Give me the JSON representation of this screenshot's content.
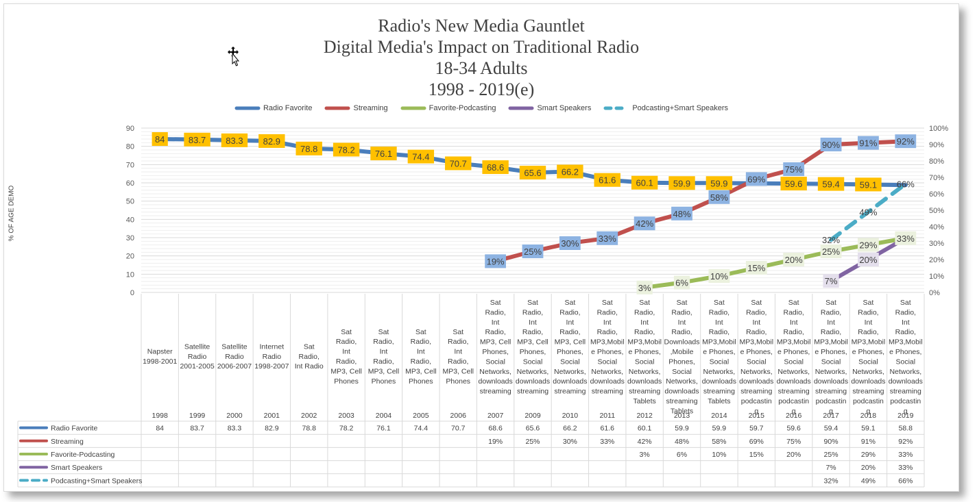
{
  "chart_data": {
    "type": "line",
    "title_lines": [
      "Radio's New Media Gauntlet",
      "Digital Media's Impact on Traditional Radio",
      "18-34 Adults",
      "1998 - 2019(e)"
    ],
    "ylabel": "% OF AGE DEMO",
    "left_axis": {
      "ylim": [
        0,
        90
      ],
      "ticks": [
        "0",
        "10",
        "20",
        "30",
        "40",
        "50",
        "60",
        "70",
        "80",
        "90"
      ]
    },
    "right_axis": {
      "ylim": [
        0,
        100
      ],
      "ticks": [
        "0%",
        "10%",
        "20%",
        "30%",
        "40%",
        "50%",
        "60%",
        "70%",
        "80%",
        "90%",
        "100%"
      ]
    },
    "legend_position": "top",
    "years": [
      "1998",
      "1999",
      "2000",
      "2001",
      "2002",
      "2003",
      "2004",
      "2005",
      "2006",
      "2007",
      "2009",
      "2010",
      "2011",
      "2012",
      "2013",
      "2014",
      "2015",
      "2016",
      "2017",
      "2018",
      "2019"
    ],
    "category_labels": [
      "Napster 1998-2001",
      "Satellite Radio 2001-2005",
      "Satellite Radio 2006-2007",
      "Internet Radio 1998-2007",
      "Sat Radio, Int Radio",
      "Sat Radio, Int Radio, MP3, Cell Phones",
      "Sat Radio, Int Radio, MP3, Cell Phones",
      "Sat Radio, Int Radio, MP3, Cell Phones",
      "Sat Radio, Int Radio, MP3, Cell Phones",
      "Sat Radio, Int Radio, MP3, Cell Phones, Social Networks, downloads streaming",
      "Sat Radio, Int Radio, MP3, Cell Phones, Social Networks, downloads streaming",
      "Sat Radio, Int Radio, MP3, Cell Phones, Social Networks, downloads streaming",
      "Sat Radio, Int Radio, MP3,Mobile Phones, Social Networks, downloads streaming",
      "Sat Radio, Int Radio, MP3,Mobile Phones, Social Networks, downloads streaming Tablets",
      "Sat Radio, Int Radio, Downloads,Mobile Phones, Social Networks, downloads streaming Tablets",
      "Sat Radio, Int Radio, MP3,Mobile Phones, Social Networks, downloads streaming Tablets",
      "Sat Radio, Int Radio, MP3,Mobile Phones, Social Networks, downloads streaming podcasting",
      "Sat Radio, Int Radio, MP3,Mobile Phones, Social Networks, downloads streaming podcasting",
      "Sat Radio, Int Radio, MP3,Mobile Phones, Social Networks, downloads streaming podcasting",
      "Sat Radio, Int Radio, MP3,Mobile Phones, Social Networks, downloads streaming podcasting",
      "Sat Radio, Int Radio, MP3,Mobile Phones, Social Networks, downloads streaming podcasting"
    ],
    "series": [
      {
        "name": "Radio Favorite",
        "axis": "left",
        "color": "#4a7ebb",
        "dash": false,
        "label_bg": "#ffc000",
        "values": [
          84,
          83.7,
          83.3,
          82.9,
          78.8,
          78.2,
          76.1,
          74.4,
          70.7,
          68.6,
          65.6,
          66.2,
          61.6,
          60.1,
          59.9,
          59.9,
          59.7,
          59.6,
          59.4,
          59.1,
          58.8
        ],
        "labels": [
          "84",
          "83.7",
          "83.3",
          "82.9",
          "78.8",
          "78.2",
          "76.1",
          "74.4",
          "70.7",
          "68.6",
          "65.6",
          "66.2",
          "61.6",
          "60.1",
          "59.9",
          "59.9",
          "59.7",
          "59.6",
          "59.4",
          "59.1",
          "58.8"
        ],
        "shown_labels": [
          "84",
          "83.7",
          "83.3",
          "82.9",
          "78.8",
          "78.2",
          "76.1",
          "74.4",
          "70.7",
          "68.6",
          "65.6",
          "66.2",
          "61.6",
          "60.1",
          "59.9",
          "59.9",
          "",
          "59.6",
          "59.4",
          "59.1",
          ""
        ]
      },
      {
        "name": "Streaming",
        "axis": "right",
        "color": "#c0504d",
        "dash": false,
        "label_bg": "#8db3e2",
        "values": [
          null,
          null,
          null,
          null,
          null,
          null,
          null,
          null,
          null,
          19,
          25,
          30,
          33,
          42,
          48,
          58,
          69,
          75,
          90,
          91,
          92
        ],
        "labels": [
          "",
          "",
          "",
          "",
          "",
          "",
          "",
          "",
          "",
          "19%",
          "25%",
          "30%",
          "33%",
          "42%",
          "48%",
          "58%",
          "69%",
          "75%",
          "90%",
          "91%",
          "92%"
        ]
      },
      {
        "name": "Favorite-Podcasting",
        "axis": "right",
        "color": "#9bbb59",
        "dash": false,
        "label_bg": "#ebf1de",
        "values": [
          null,
          null,
          null,
          null,
          null,
          null,
          null,
          null,
          null,
          null,
          null,
          null,
          null,
          3,
          6,
          10,
          15,
          20,
          25,
          29,
          33
        ],
        "labels": [
          "",
          "",
          "",
          "",
          "",
          "",
          "",
          "",
          "",
          "",
          "",
          "",
          "",
          "3%",
          "6%",
          "10%",
          "15%",
          "20%",
          "25%",
          "29%",
          "33%"
        ]
      },
      {
        "name": "Smart Speakers",
        "axis": "right",
        "color": "#8064a2",
        "dash": false,
        "label_bg": "#e4dfec",
        "values": [
          null,
          null,
          null,
          null,
          null,
          null,
          null,
          null,
          null,
          null,
          null,
          null,
          null,
          null,
          null,
          null,
          null,
          null,
          7,
          20,
          33
        ],
        "labels": [
          "",
          "",
          "",
          "",
          "",
          "",
          "",
          "",
          "",
          "",
          "",
          "",
          "",
          "",
          "",
          "",
          "",
          "",
          "7%",
          "20%",
          "33%"
        ],
        "shown_labels": [
          "",
          "",
          "",
          "",
          "",
          "",
          "",
          "",
          "",
          "",
          "",
          "",
          "",
          "",
          "",
          "",
          "",
          "",
          "7%",
          "20%",
          ""
        ]
      },
      {
        "name": "Podcasting+Smart Speakers",
        "axis": "right",
        "color": "#4bacc6",
        "dash": true,
        "label_bg": "none",
        "values": [
          null,
          null,
          null,
          null,
          null,
          null,
          null,
          null,
          null,
          null,
          null,
          null,
          null,
          null,
          null,
          null,
          null,
          null,
          32,
          49,
          66
        ],
        "labels": [
          "",
          "",
          "",
          "",
          "",
          "",
          "",
          "",
          "",
          "",
          "",
          "",
          "",
          "",
          "",
          "",
          "",
          "",
          "32%",
          "49%",
          "66%"
        ]
      }
    ]
  }
}
